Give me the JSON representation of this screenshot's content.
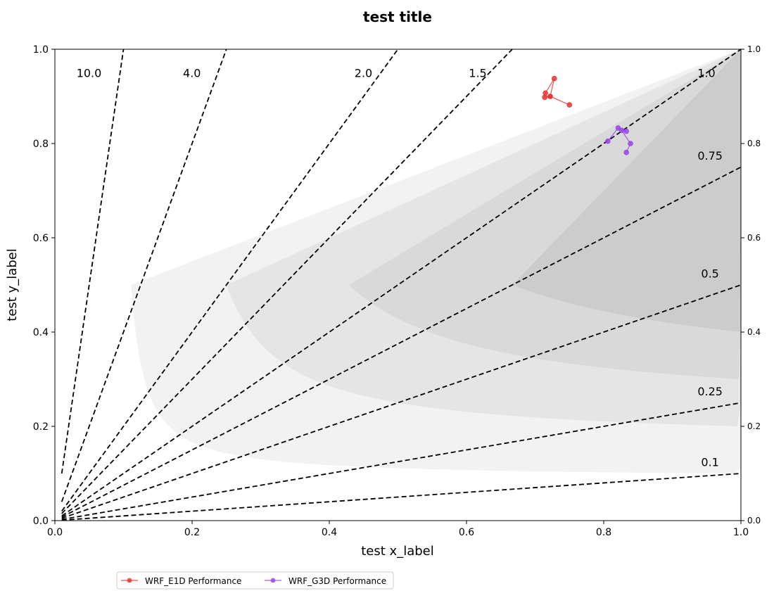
{
  "chart_data": {
    "type": "scatter",
    "title": "test title",
    "xlabel": "test x_label",
    "ylabel": "test y_label",
    "xlim": [
      0,
      1
    ],
    "ylim": [
      0,
      1
    ],
    "grid": false,
    "legend_position": "bottom-left, below axes",
    "x_ticks": [
      "0.0",
      "0.2",
      "0.4",
      "0.6",
      "0.8",
      "1.0"
    ],
    "y_ticks": [
      "0.0",
      "0.2",
      "0.4",
      "0.6",
      "0.8",
      "1.0"
    ],
    "y_ticks_right": [
      "0.0",
      "0.2",
      "0.4",
      "0.6",
      "0.8",
      "1.0"
    ],
    "csi_levels": [
      0.1,
      0.2,
      0.3,
      0.4,
      0.5,
      0.6,
      0.7,
      0.8,
      0.9
    ],
    "shade_colors": [
      "#ffffff",
      "#f2f2f2",
      "#e5e5e5",
      "#d9d9d9",
      "#cccccc",
      "#bfbfbf",
      "#b3b3b3",
      "#a6a6a6",
      "#999999",
      "#8c8c8c"
    ],
    "bias_lines": [
      {
        "bias": 10.0,
        "label": "10.0"
      },
      {
        "bias": 4.0,
        "label": "4.0"
      },
      {
        "bias": 2.0,
        "label": "2.0"
      },
      {
        "bias": 1.5,
        "label": "1.5"
      },
      {
        "bias": 1.0,
        "label": "1.0"
      },
      {
        "bias": 0.75,
        "label": "0.75"
      },
      {
        "bias": 0.5,
        "label": "0.5"
      },
      {
        "bias": 0.25,
        "label": "0.25"
      },
      {
        "bias": 0.1,
        "label": "0.1"
      }
    ],
    "series": [
      {
        "name": "WRF_E1D Performance",
        "color": "#e83535",
        "points": [
          {
            "x": 0.75,
            "y": 0.882
          },
          {
            "x": 0.722,
            "y": 0.9
          },
          {
            "x": 0.714,
            "y": 0.898
          },
          {
            "x": 0.715,
            "y": 0.907
          },
          {
            "x": 0.728,
            "y": 0.938
          },
          {
            "x": 0.722,
            "y": 0.9
          }
        ]
      },
      {
        "name": "WRF_G3D Performance",
        "color": "#9b45e8",
        "points": [
          {
            "x": 0.806,
            "y": 0.805
          },
          {
            "x": 0.821,
            "y": 0.833
          },
          {
            "x": 0.833,
            "y": 0.826
          },
          {
            "x": 0.826,
            "y": 0.828
          },
          {
            "x": 0.839,
            "y": 0.8
          },
          {
            "x": 0.833,
            "y": 0.781
          }
        ]
      }
    ]
  }
}
